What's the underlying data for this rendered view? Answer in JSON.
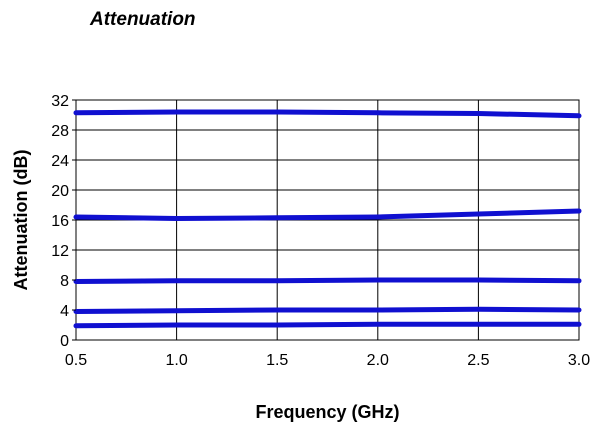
{
  "chart_data": {
    "type": "line",
    "title": "Attenuation",
    "xlabel": "Frequency (GHz)",
    "ylabel": "Attenuation (dB)",
    "xlim": [
      0.5,
      3.0
    ],
    "ylim": [
      0,
      32
    ],
    "xticks": [
      "0.5",
      "1.0",
      "1.5",
      "2.0",
      "2.5",
      "3.0"
    ],
    "yticks": [
      "0",
      "4",
      "8",
      "12",
      "16",
      "20",
      "24",
      "28",
      "32"
    ],
    "grid": true,
    "legend": "none",
    "line_color": "#1010d0",
    "series": [
      {
        "x": [
          0.5,
          1.0,
          1.5,
          2.0,
          2.5,
          3.0
        ],
        "values": [
          30.3,
          30.4,
          30.4,
          30.3,
          30.2,
          29.9
        ]
      },
      {
        "x": [
          0.5,
          1.0,
          1.5,
          2.0,
          2.5,
          3.0
        ],
        "values": [
          16.4,
          16.2,
          16.3,
          16.4,
          16.8,
          17.2
        ]
      },
      {
        "x": [
          0.5,
          1.0,
          1.5,
          2.0,
          2.5,
          3.0
        ],
        "values": [
          7.8,
          7.9,
          7.9,
          8.0,
          8.0,
          7.9
        ]
      },
      {
        "x": [
          0.5,
          1.0,
          1.5,
          2.0,
          2.5,
          3.0
        ],
        "values": [
          3.8,
          3.9,
          4.0,
          4.0,
          4.1,
          4.0
        ]
      },
      {
        "x": [
          0.5,
          1.0,
          1.5,
          2.0,
          2.5,
          3.0
        ],
        "values": [
          1.9,
          2.0,
          2.0,
          2.1,
          2.1,
          2.1
        ]
      }
    ]
  }
}
